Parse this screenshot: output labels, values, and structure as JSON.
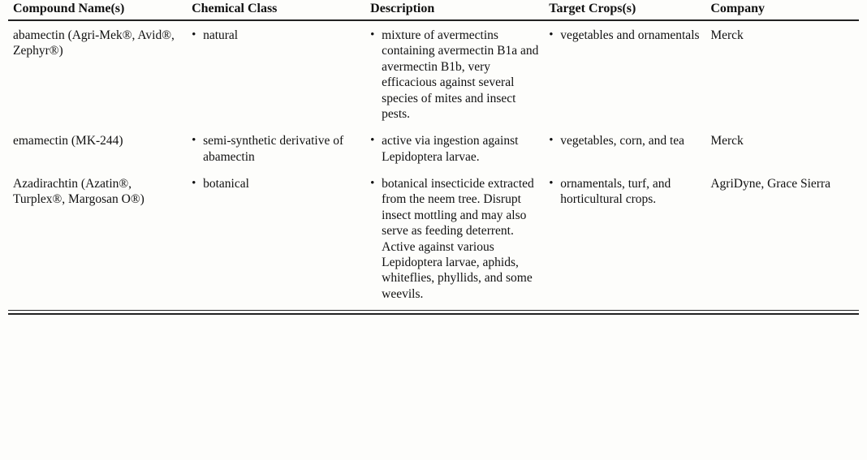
{
  "table": {
    "columns": [
      "Compound Name(s)",
      "Chemical Class",
      "Description",
      "Target Crops(s)",
      "Company"
    ],
    "header_border_color": "#222222",
    "bottom_double_rule_color": "#222222",
    "font_family": "Times New Roman",
    "header_fontsize_pt": 12,
    "body_fontsize_pt": 11.5,
    "background_color": "#fdfdfb",
    "text_color": "#111111",
    "column_widths_pct": [
      21,
      21,
      21,
      19,
      18
    ],
    "rows": [
      {
        "compound": "abamectin (Agri-Mek®, Avid®, Zephyr®)",
        "chemical_class": "natural",
        "description": "mixture of avermectins containing avermectin B1a and avermectin B1b, very efficacious against several species of mites and insect pests.",
        "target_crops": "vegetables and ornamentals",
        "company": "Merck"
      },
      {
        "compound": "emamectin (MK-244)",
        "chemical_class": "semi-synthetic derivative of abamectin",
        "description": "active via ingestion against Lepidoptera larvae.",
        "target_crops": "vegetables, corn, and tea",
        "company": "Merck"
      },
      {
        "compound": "Azadirachtin (Azatin®, Turplex®, Margosan O®)",
        "chemical_class": "botanical",
        "description": "botanical insecticide extracted from the neem tree.  Disrupt insect mottling  and may also serve as feeding deterrent.  Active against various Lepidoptera larvae, aphids, whiteflies, phyllids, and some weevils.",
        "target_crops": "ornamentals, turf, and horticultural crops.",
        "company": "AgriDyne, Grace Sierra"
      }
    ]
  }
}
